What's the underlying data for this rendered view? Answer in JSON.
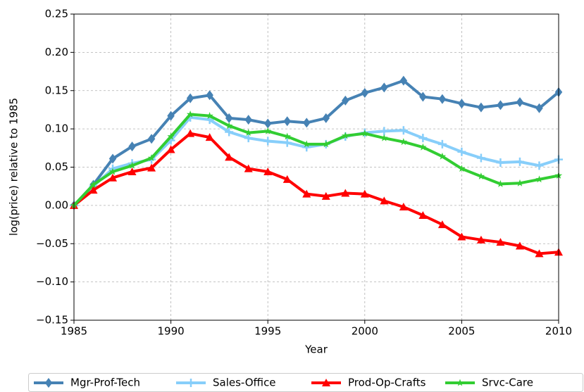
{
  "chart_data": {
    "type": "line",
    "x_label": "Year",
    "y_label": "log(price) relative to 1985",
    "x": [
      1985,
      1986,
      1987,
      1988,
      1989,
      1990,
      1991,
      1992,
      1993,
      1994,
      1995,
      1996,
      1997,
      1998,
      1999,
      2000,
      2001,
      2002,
      2003,
      2004,
      2005,
      2006,
      2007,
      2008,
      2009,
      2010
    ],
    "series": [
      {
        "name": "Mgr-Prof-Tech",
        "color": "#4682b4",
        "marker": "D",
        "values": [
          0,
          0.027,
          0.061,
          0.077,
          0.087,
          0.117,
          0.14,
          0.144,
          0.114,
          0.112,
          0.107,
          0.11,
          0.108,
          0.114,
          0.137,
          0.147,
          0.154,
          0.163,
          0.142,
          0.139,
          0.133,
          0.128,
          0.131,
          0.135,
          0.127,
          0.148
        ]
      },
      {
        "name": "Sales-Office",
        "color": "#87cefa",
        "marker": "+",
        "values": [
          0,
          0.025,
          0.048,
          0.055,
          0.06,
          0.085,
          0.115,
          0.112,
          0.096,
          0.088,
          0.084,
          0.082,
          0.076,
          0.08,
          0.09,
          0.095,
          0.097,
          0.098,
          0.088,
          0.08,
          0.07,
          0.062,
          0.056,
          0.057,
          0.052,
          0.06
        ]
      },
      {
        "name": "Prod-Op-Crafts",
        "color": "#ff0000",
        "marker": "^",
        "values": [
          0,
          0.02,
          0.036,
          0.044,
          0.049,
          0.073,
          0.094,
          0.089,
          0.063,
          0.048,
          0.044,
          0.034,
          0.015,
          0.012,
          0.016,
          0.015,
          0.006,
          -0.002,
          -0.013,
          -0.025,
          -0.041,
          -0.045,
          -0.048,
          -0.053,
          -0.063,
          -0.061
        ]
      },
      {
        "name": "Srvc-Care",
        "color": "#32cd32",
        "marker": "*",
        "values": [
          0,
          0.027,
          0.044,
          0.052,
          0.062,
          0.09,
          0.119,
          0.117,
          0.104,
          0.095,
          0.097,
          0.09,
          0.08,
          0.08,
          0.091,
          0.094,
          0.088,
          0.083,
          0.076,
          0.064,
          0.048,
          0.038,
          0.028,
          0.029,
          0.034,
          0.039
        ]
      }
    ],
    "xlim": [
      1985,
      2010
    ],
    "xticks": [
      1985,
      1990,
      1995,
      2000,
      2005,
      2010
    ],
    "ylim": [
      -0.15,
      0.25
    ],
    "yticks": [
      {
        "value": -0.15,
        "label": "−0.15"
      },
      {
        "value": -0.1,
        "label": "−0.10"
      },
      {
        "value": -0.05,
        "label": "−0.05"
      },
      {
        "value": 0,
        "label": "0.00"
      },
      {
        "value": 0.05,
        "label": "0.05"
      },
      {
        "value": 0.1,
        "label": "0.10"
      },
      {
        "value": 0.15,
        "label": "0.15"
      },
      {
        "value": 0.2,
        "label": "0.20"
      },
      {
        "value": 0.25,
        "label": "0.25"
      }
    ],
    "grid": true,
    "legend": "bottom"
  }
}
